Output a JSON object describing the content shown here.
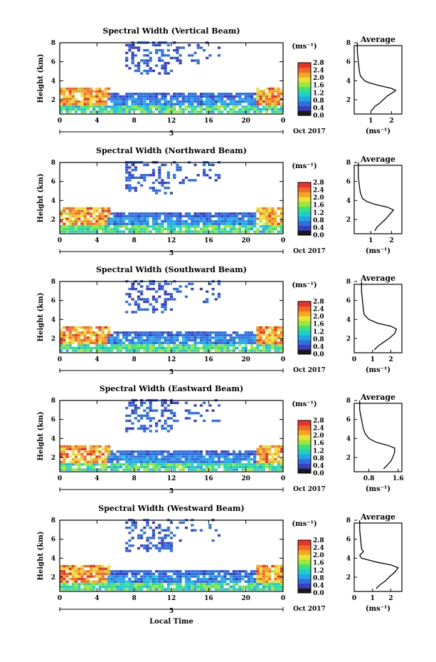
{
  "chart_data": [
    {
      "type": "heatmap",
      "title": "Spectral Width (Vertical Beam)",
      "ylabel": "Height (km)",
      "xlabel": "",
      "x_ticks": [
        "0",
        "4",
        "8",
        "12",
        "16",
        "20",
        "0"
      ],
      "x_date_label": "5",
      "date_label": "Oct 2017",
      "y_ticks": [
        "2",
        "4",
        "6",
        "8"
      ],
      "xlim": [
        0,
        24
      ],
      "ylim": [
        0.5,
        8
      ],
      "colorbar": {
        "unit": "(ms⁻¹)",
        "ticks": [
          "0.0",
          "0.4",
          "0.8",
          "1.2",
          "1.6",
          "2.0",
          "2.4",
          "2.8"
        ],
        "range": [
          0,
          2.8
        ]
      },
      "average": {
        "title": "Average",
        "xlabel": "(ms⁻¹)",
        "x_ticks": [
          "1",
          "2"
        ],
        "xlim": [
          0.2,
          2.5
        ],
        "y_ticks": [
          "2",
          "4",
          "6",
          "8"
        ],
        "ylim": [
          0.5,
          8
        ],
        "profile": [
          [
            0.8,
            1.0
          ],
          [
            1.0,
            1.1
          ],
          [
            1.3,
            1.2
          ],
          [
            1.6,
            1.4
          ],
          [
            2.0,
            1.6
          ],
          [
            2.4,
            1.8
          ],
          [
            2.8,
            2.1
          ],
          [
            3.0,
            2.2
          ],
          [
            3.2,
            2.0
          ],
          [
            3.5,
            1.4
          ],
          [
            3.8,
            0.9
          ],
          [
            4.0,
            0.7
          ],
          [
            4.5,
            0.5
          ],
          [
            5.0,
            0.45
          ],
          [
            6.0,
            0.4
          ],
          [
            7.0,
            0.35
          ],
          [
            8.0,
            0.35
          ]
        ]
      }
    },
    {
      "type": "heatmap",
      "title": "Spectral Width (Northward Beam)",
      "ylabel": "Height (km)",
      "xlabel": "",
      "x_ticks": [
        "0",
        "4",
        "8",
        "12",
        "16",
        "20",
        "0"
      ],
      "x_date_label": "5",
      "date_label": "Oct 2017",
      "y_ticks": [
        "2",
        "4",
        "6",
        "8"
      ],
      "xlim": [
        0,
        24
      ],
      "ylim": [
        0.5,
        8
      ],
      "colorbar": {
        "unit": "(ms⁻¹)",
        "ticks": [
          "0.0",
          "0.4",
          "0.8",
          "1.2",
          "1.6",
          "2.0",
          "2.4",
          "2.8"
        ],
        "range": [
          0,
          2.8
        ]
      },
      "average": {
        "title": "Average",
        "xlabel": "(ms⁻¹)",
        "x_ticks": [
          "1",
          "2"
        ],
        "xlim": [
          0.2,
          2.5
        ],
        "y_ticks": [
          "2",
          "4",
          "6",
          "8"
        ],
        "ylim": [
          0.5,
          8
        ],
        "profile": [
          [
            0.8,
            1.2
          ],
          [
            1.2,
            1.3
          ],
          [
            1.6,
            1.5
          ],
          [
            2.0,
            1.7
          ],
          [
            2.5,
            1.9
          ],
          [
            3.0,
            2.1
          ],
          [
            3.3,
            1.8
          ],
          [
            3.6,
            1.2
          ],
          [
            3.9,
            0.8
          ],
          [
            4.2,
            0.6
          ],
          [
            4.8,
            0.5
          ],
          [
            5.5,
            0.45
          ],
          [
            6.5,
            0.4
          ],
          [
            8.0,
            0.4
          ]
        ]
      }
    },
    {
      "type": "heatmap",
      "title": "Spectral Width (Southward Beam)",
      "ylabel": "Height (km)",
      "xlabel": "",
      "x_ticks": [
        "0",
        "4",
        "8",
        "12",
        "16",
        "20",
        "0"
      ],
      "x_date_label": "5",
      "date_label": "Oct 2017",
      "y_ticks": [
        "2",
        "4",
        "6",
        "8"
      ],
      "xlim": [
        0,
        24
      ],
      "ylim": [
        0.5,
        8
      ],
      "colorbar": {
        "unit": "(ms⁻¹)",
        "ticks": [
          "0.0",
          "0.4",
          "0.8",
          "1.2",
          "1.6",
          "2.0",
          "2.4",
          "2.8"
        ],
        "range": [
          0,
          2.8
        ]
      },
      "average": {
        "title": "Average",
        "xlabel": "(ms⁻¹)",
        "x_ticks": [
          "0",
          "1",
          "2"
        ],
        "xlim": [
          0,
          2.6
        ],
        "y_ticks": [
          "2",
          "4",
          "6",
          "8"
        ],
        "ylim": [
          0.5,
          8
        ],
        "profile": [
          [
            0.8,
            1.1
          ],
          [
            1.2,
            1.3
          ],
          [
            1.6,
            1.6
          ],
          [
            2.0,
            1.9
          ],
          [
            2.5,
            2.2
          ],
          [
            3.0,
            2.3
          ],
          [
            3.3,
            2.0
          ],
          [
            3.6,
            1.3
          ],
          [
            4.0,
            0.8
          ],
          [
            4.5,
            0.55
          ],
          [
            5.0,
            0.5
          ],
          [
            6.0,
            0.45
          ],
          [
            7.0,
            0.4
          ],
          [
            8.0,
            0.4
          ]
        ]
      }
    },
    {
      "type": "heatmap",
      "title": "Spectral Width (Eastward Beam)",
      "ylabel": "Height (km)",
      "xlabel": "",
      "x_ticks": [
        "0",
        "4",
        "8",
        "12",
        "16",
        "20",
        "0"
      ],
      "x_date_label": "5",
      "date_label": "Oct 2017",
      "y_ticks": [
        "2",
        "4",
        "6",
        "8"
      ],
      "xlim": [
        0,
        24
      ],
      "ylim": [
        0.5,
        8
      ],
      "colorbar": {
        "unit": "(ms⁻¹)",
        "ticks": [
          "0.0",
          "0.4",
          "0.8",
          "1.2",
          "1.6",
          "2.0",
          "2.4",
          "2.8"
        ],
        "range": [
          0,
          2.8
        ]
      },
      "average": {
        "title": "Average",
        "xlabel": "(ms⁻¹)",
        "x_ticks": [
          "0.8",
          "1.6"
        ],
        "xlim": [
          0.4,
          1.7
        ],
        "y_ticks": [
          "2",
          "4",
          "6",
          "8"
        ],
        "ylim": [
          0.5,
          8
        ],
        "profile": [
          [
            0.8,
            1.2
          ],
          [
            1.2,
            1.3
          ],
          [
            1.6,
            1.4
          ],
          [
            2.0,
            1.45
          ],
          [
            2.5,
            1.5
          ],
          [
            3.0,
            1.5
          ],
          [
            3.3,
            1.3
          ],
          [
            3.6,
            1.0
          ],
          [
            4.0,
            0.8
          ],
          [
            4.5,
            0.7
          ],
          [
            5.0,
            0.65
          ],
          [
            6.0,
            0.6
          ],
          [
            7.0,
            0.55
          ],
          [
            8.0,
            0.55
          ]
        ]
      }
    },
    {
      "type": "heatmap",
      "title": "Spectral Width (Westward Beam)",
      "ylabel": "Height (km)",
      "xlabel": "Local Time",
      "x_ticks": [
        "0",
        "4",
        "8",
        "12",
        "16",
        "20",
        "0"
      ],
      "x_date_label": "5",
      "date_label": "Oct 2017",
      "y_ticks": [
        "2",
        "4",
        "6",
        "8"
      ],
      "xlim": [
        0,
        24
      ],
      "ylim": [
        0.5,
        8
      ],
      "colorbar": {
        "unit": "(ms⁻¹)",
        "ticks": [
          "0.0",
          "0.4",
          "0.8",
          "1.2",
          "1.6",
          "2.0",
          "2.4",
          "2.8"
        ],
        "range": [
          0,
          2.8
        ]
      },
      "average": {
        "title": "Average",
        "xlabel": "(ms⁻¹)",
        "x_ticks": [
          "0",
          "1",
          "2"
        ],
        "xlim": [
          0,
          2.6
        ],
        "y_ticks": [
          "2",
          "4",
          "6",
          "8"
        ],
        "ylim": [
          0.5,
          8
        ],
        "profile": [
          [
            0.8,
            1.2
          ],
          [
            1.2,
            1.4
          ],
          [
            1.6,
            1.7
          ],
          [
            2.0,
            1.9
          ],
          [
            2.5,
            2.2
          ],
          [
            3.0,
            2.4
          ],
          [
            3.3,
            2.0
          ],
          [
            3.6,
            1.2
          ],
          [
            4.0,
            0.4
          ],
          [
            4.3,
            0.3
          ],
          [
            4.7,
            0.5
          ],
          [
            5.0,
            0.4
          ],
          [
            6.0,
            0.35
          ],
          [
            7.0,
            0.3
          ],
          [
            8.0,
            0.3
          ]
        ]
      }
    }
  ]
}
